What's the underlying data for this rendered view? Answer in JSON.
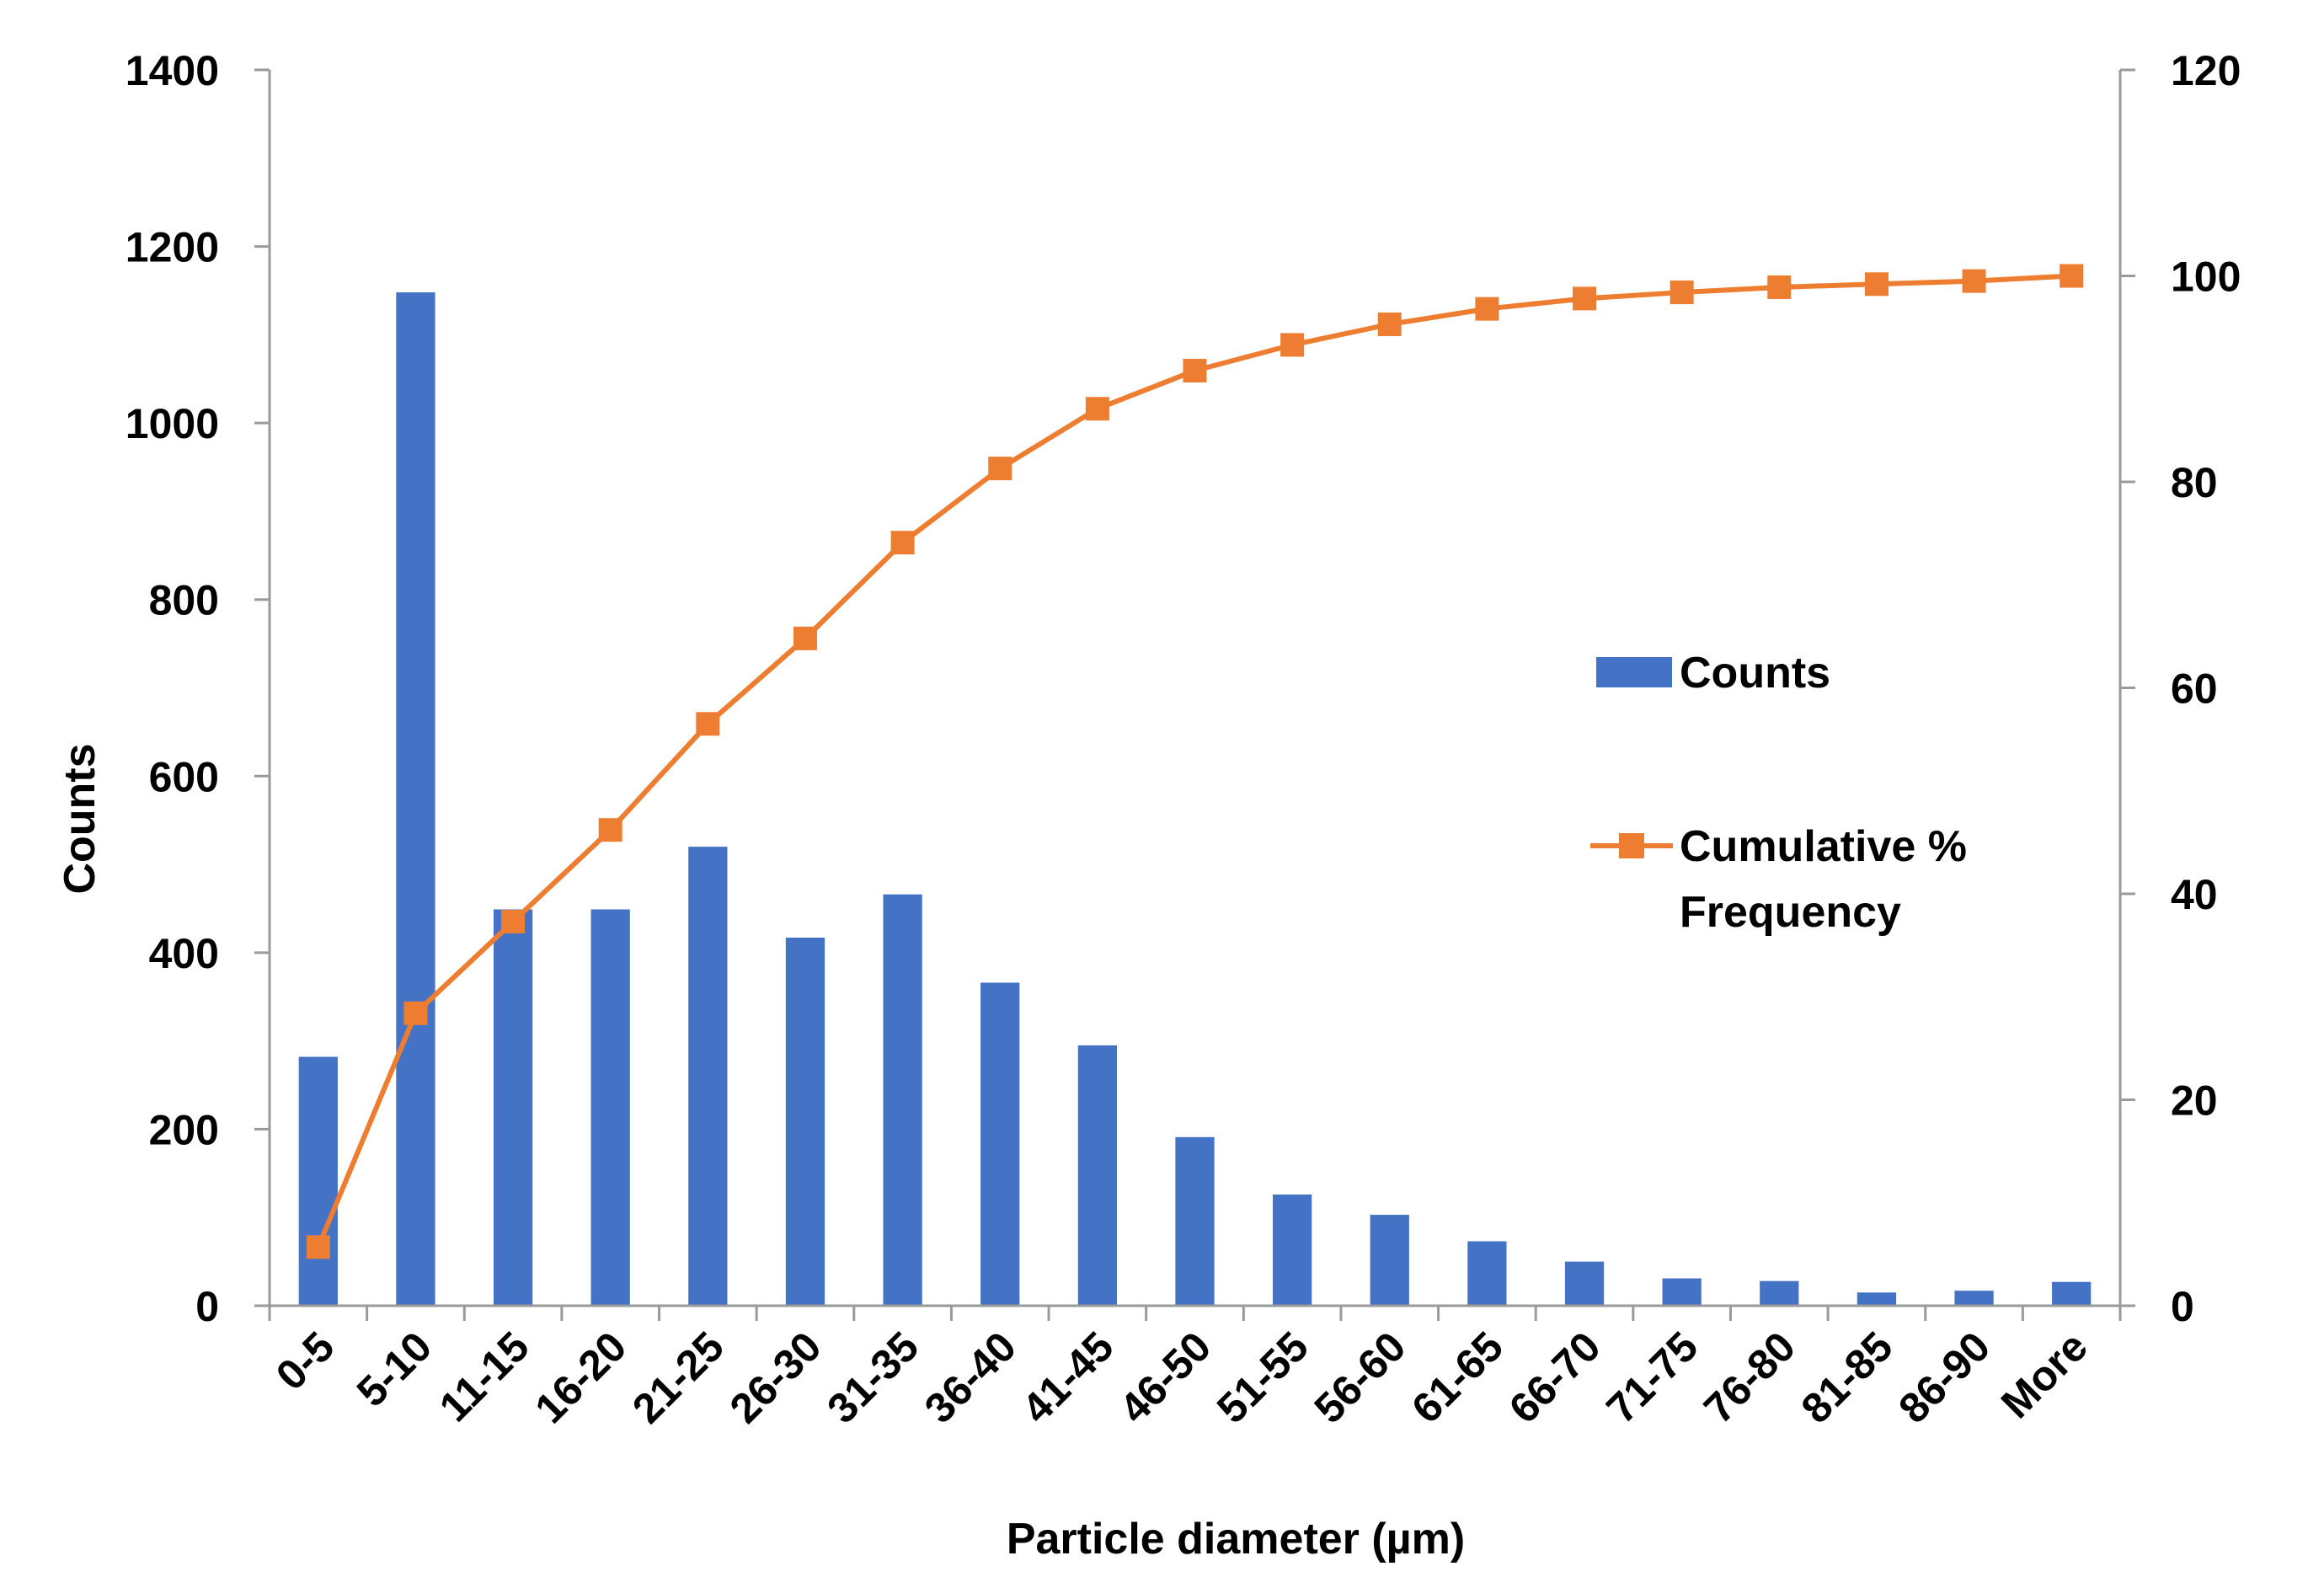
{
  "chart_data": {
    "type": "bar+line",
    "categories": [
      "0-5",
      "5-10",
      "11-15",
      "16-20",
      "21-25",
      "26-30",
      "31-35",
      "36-40",
      "41-45",
      "46-50",
      "51-55",
      "56-60",
      "61-65",
      "66-70",
      "71-75",
      "76-80",
      "81-85",
      "86-90",
      "More"
    ],
    "series": [
      {
        "name": "Counts",
        "type": "bar",
        "axis": "left",
        "color": "#4472c4",
        "values": [
          282,
          1148,
          449,
          449,
          520,
          417,
          466,
          366,
          295,
          191,
          126,
          103,
          73,
          50,
          31,
          28,
          15,
          17,
          27
        ]
      },
      {
        "name": "Cumulative % Frequency",
        "legend_lines": [
          "Cumulative %",
          "Frequency"
        ],
        "type": "line",
        "axis": "right",
        "color": "#ed7d31",
        "marker": "square",
        "values": [
          5.7,
          28.4,
          37.3,
          46.2,
          56.5,
          64.8,
          74.1,
          81.3,
          87.1,
          90.8,
          93.3,
          95.3,
          96.8,
          97.8,
          98.4,
          98.9,
          99.2,
          99.5,
          100
        ]
      }
    ],
    "xlabel": "Particle diameter (µm)",
    "ylabel": "Counts",
    "y2label": "",
    "ylim": [
      0,
      1400
    ],
    "yticks": [
      "0",
      "200",
      "400",
      "600",
      "800",
      "1000",
      "1200",
      "1400"
    ],
    "y2lim": [
      0,
      120
    ],
    "y2ticks": [
      "0",
      "20",
      "40",
      "60",
      "80",
      "100",
      "120"
    ],
    "grid": false,
    "legend_position": "right-middle"
  }
}
